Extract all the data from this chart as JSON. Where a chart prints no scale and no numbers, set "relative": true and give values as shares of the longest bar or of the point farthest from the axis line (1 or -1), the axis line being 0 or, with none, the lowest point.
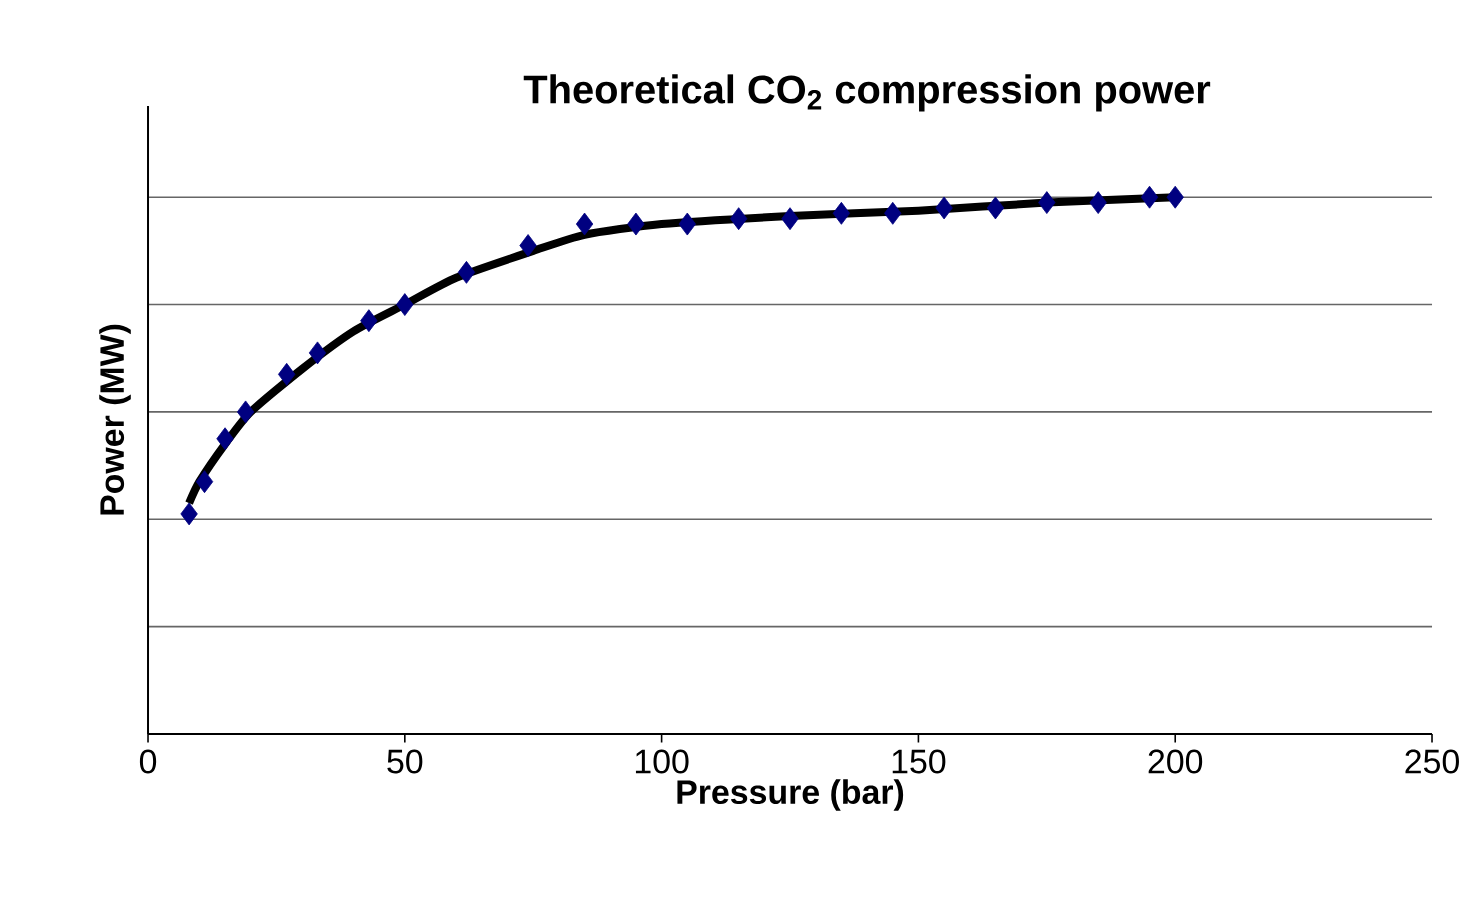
{
  "chart_data": {
    "type": "scatter",
    "title": "Theoretical CO$_{2}$ compression power",
    "xlabel": "Pressure (bar)",
    "ylabel": "Power (MW)",
    "relative": true,
    "grid": "y",
    "xlim": [
      0,
      250
    ],
    "xticks": [
      0,
      50,
      100,
      150,
      200,
      250
    ],
    "series": [
      {
        "color": "#000080",
        "marker": "diamond",
        "x": [
          8,
          11,
          15,
          19,
          27,
          33,
          43,
          50,
          62,
          74,
          85,
          95,
          105,
          115,
          125,
          135,
          145,
          155,
          165,
          175,
          185,
          195,
          200
        ],
        "values": [
          0.41,
          0.47,
          0.55,
          0.6,
          0.67,
          0.71,
          0.77,
          0.8,
          0.86,
          0.91,
          0.95,
          0.95,
          0.95,
          0.96,
          0.96,
          0.97,
          0.97,
          0.98,
          0.98,
          0.99,
          0.99,
          1.0,
          1.0
        ]
      },
      {
        "type": "line",
        "color": "#000000",
        "marker": "none",
        "line_style": "solid",
        "x": [
          8,
          10,
          15,
          20,
          30,
          40,
          50,
          60,
          75,
          85,
          100,
          125,
          150,
          175,
          200
        ],
        "values": [
          0.43,
          0.47,
          0.54,
          0.6,
          0.68,
          0.75,
          0.8,
          0.85,
          0.9,
          0.93,
          0.95,
          0.965,
          0.975,
          0.99,
          1.0
        ]
      }
    ]
  }
}
